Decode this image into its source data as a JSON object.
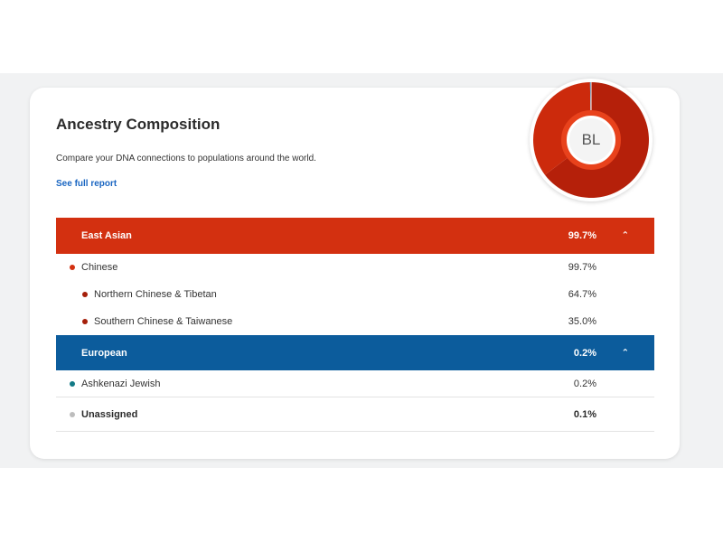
{
  "card": {
    "title": "Ancestry Composition",
    "subtitle": "Compare your DNA connections to populations around the world.",
    "report_link": "See full report"
  },
  "avatar": {
    "initials": "BL"
  },
  "chart_data": {
    "type": "pie",
    "series": [
      {
        "name": "Northern Chinese & Tibetan",
        "value": 64.7,
        "color": "#b5200a"
      },
      {
        "name": "Southern Chinese & Taiwanese",
        "value": 35.0,
        "color": "#cc2a0c"
      },
      {
        "name": "European",
        "value": 0.2,
        "color": "#0c5c9c"
      },
      {
        "name": "Unassigned",
        "value": 0.1,
        "color": "#bdbdbd"
      }
    ]
  },
  "colors": {
    "east_asian": "#d33010",
    "european": "#0c5c9c",
    "chinese_dot": "#d33010",
    "sub_dot": "#a51f0a",
    "jewish_dot": "#127a86",
    "unassigned_dot": "#bdbdbd"
  },
  "regions": {
    "east_asian": {
      "name": "East Asian",
      "pct": "99.7%",
      "rows": [
        {
          "label": "Chinese",
          "pct": "99.7%"
        },
        {
          "label": "Northern Chinese & Tibetan",
          "pct": "64.7%"
        },
        {
          "label": "Southern Chinese & Taiwanese",
          "pct": "35.0%"
        }
      ]
    },
    "european": {
      "name": "European",
      "pct": "0.2%",
      "rows": [
        {
          "label": "Ashkenazi Jewish",
          "pct": "0.2%"
        }
      ]
    },
    "unassigned": {
      "label": "Unassigned",
      "pct": "0.1%"
    }
  },
  "icons": {
    "collapse": "chevron-up-icon",
    "dot": "bullet-dot-icon"
  }
}
